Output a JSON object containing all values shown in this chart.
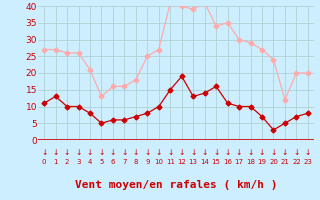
{
  "hours": [
    0,
    1,
    2,
    3,
    4,
    5,
    6,
    7,
    8,
    9,
    10,
    11,
    12,
    13,
    14,
    15,
    16,
    17,
    18,
    19,
    20,
    21,
    22,
    23
  ],
  "wind_mean": [
    11,
    13,
    10,
    10,
    8,
    5,
    6,
    6,
    7,
    8,
    10,
    15,
    19,
    13,
    14,
    16,
    11,
    10,
    10,
    7,
    3,
    5,
    7,
    8
  ],
  "wind_gust": [
    27,
    27,
    26,
    26,
    21,
    13,
    16,
    16,
    18,
    25,
    27,
    41,
    40,
    39,
    41,
    34,
    35,
    30,
    29,
    27,
    24,
    12,
    20,
    20
  ],
  "line_mean_color": "#cc0000",
  "line_gust_color": "#ffaaaa",
  "background_color": "#cceeff",
  "grid_color": "#aacccc",
  "axis_color": "#cc0000",
  "xlabel": "Vent moyen/en rafales ( km/h )",
  "xlabel_color": "#cc0000",
  "ylim": [
    0,
    40
  ],
  "yticks": [
    0,
    5,
    10,
    15,
    20,
    25,
    30,
    35,
    40
  ],
  "label_fontsize": 8
}
